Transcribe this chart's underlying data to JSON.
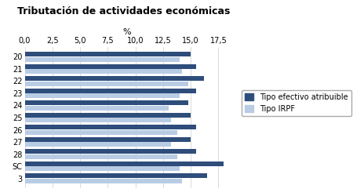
{
  "title": "Tributación de actividades económicas",
  "xlabel": "%",
  "categories": [
    "20",
    "21",
    "22",
    "23",
    "24",
    "25",
    "26",
    "27",
    "28",
    "SC",
    "3"
  ],
  "tipo_efectivo": [
    15.0,
    15.5,
    16.2,
    15.5,
    14.8,
    15.0,
    15.5,
    15.0,
    15.5,
    18.0,
    16.5
  ],
  "tipo_irpf": [
    14.0,
    14.2,
    14.8,
    14.0,
    13.0,
    13.2,
    13.8,
    13.2,
    13.8,
    14.0,
    14.2
  ],
  "xlim": [
    0,
    18.5
  ],
  "xticks": [
    0.0,
    2.5,
    5.0,
    7.5,
    10.0,
    12.5,
    15.0,
    17.5
  ],
  "xtick_labels": [
    "0,0",
    "2,5",
    "5,0",
    "7,5",
    "10,0",
    "12,5",
    "15,0",
    "17,5"
  ],
  "color_efectivo": "#2E4D7B",
  "color_irpf": "#B8CCE4",
  "legend_label1": "Tipo efectivo atribuible",
  "legend_label2": "Tipo IRPF",
  "bg_color": "#FFFFFF",
  "grid_color": "#CCCCCC"
}
